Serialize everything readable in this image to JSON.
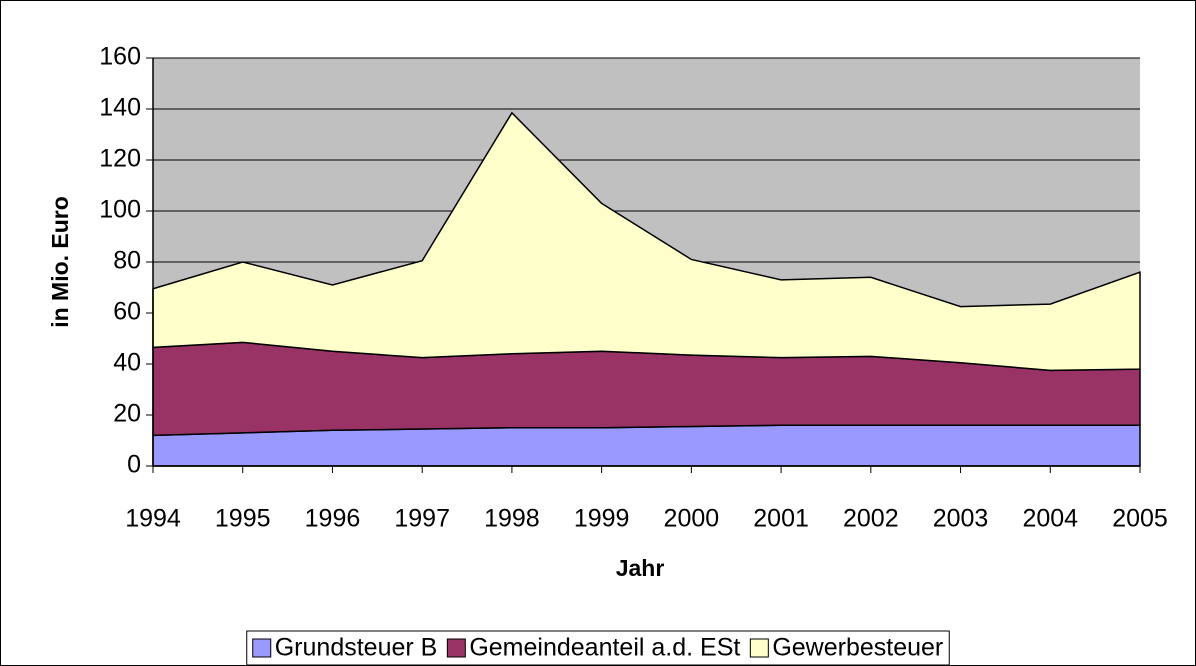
{
  "chart_data": {
    "type": "stacked_area",
    "x_label": "Jahr",
    "y_label": "in Mio. Euro",
    "categories": [
      "1994",
      "1995",
      "1996",
      "1997",
      "1998",
      "1999",
      "2000",
      "2001",
      "2002",
      "2003",
      "2004",
      "2005"
    ],
    "series": [
      {
        "name": "Grundsteuer B",
        "color": "#9999ff",
        "values": [
          12,
          13,
          14,
          14.5,
          15,
          15,
          15.5,
          16,
          16,
          16,
          16,
          16
        ]
      },
      {
        "name": "Gemeindeanteil a.d. ESt",
        "color": "#993366",
        "values": [
          34.5,
          35.5,
          31,
          28,
          29,
          30,
          28,
          26.5,
          27,
          24.5,
          21.5,
          22
        ]
      },
      {
        "name": "Gewerbesteuer",
        "color": "#ffffcc",
        "values": [
          23,
          31.5,
          26,
          38,
          94.5,
          58,
          37.5,
          30.5,
          31,
          22,
          26,
          38
        ]
      }
    ],
    "ylim": [
      0,
      160
    ],
    "yticks": [
      0,
      20,
      40,
      60,
      80,
      100,
      120,
      140,
      160
    ],
    "grid": true,
    "plot_background": "#c0c0c0",
    "legend": "bottom"
  }
}
